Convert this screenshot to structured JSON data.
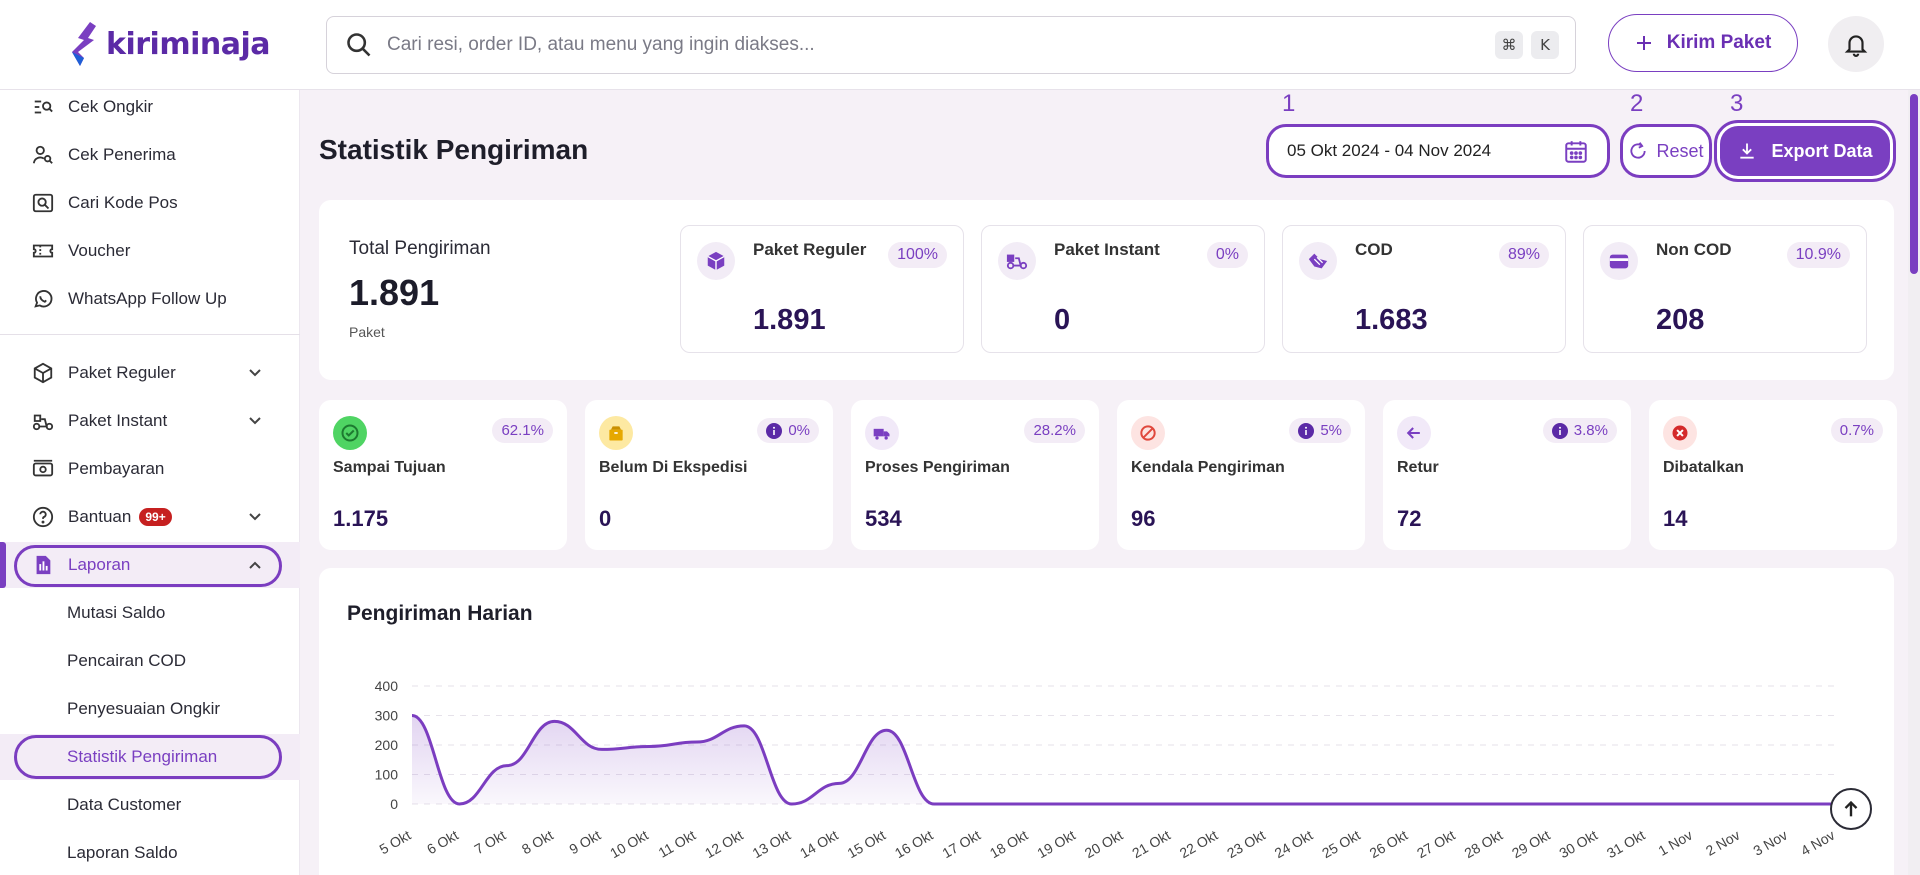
{
  "header": {
    "logo_text": "kiriminaja",
    "search_placeholder": "Cari resi, order ID, atau menu yang ingin diakses...",
    "shortcut_keys": [
      "⌘",
      "K"
    ],
    "kirim_label": "Kirim Paket"
  },
  "sidebar": {
    "top_items": [
      {
        "label": "Cek Ongkir",
        "icon": "list-search-icon"
      },
      {
        "label": "Cek Penerima",
        "icon": "user-search-icon"
      },
      {
        "label": "Cari Kode Pos",
        "icon": "map-search-icon"
      },
      {
        "label": "Voucher",
        "icon": "ticket-icon"
      },
      {
        "label": "WhatsApp Follow Up",
        "icon": "whatsapp-icon"
      }
    ],
    "menu_items": [
      {
        "label": "Paket Reguler",
        "icon": "package-icon"
      },
      {
        "label": "Paket Instant",
        "icon": "scooter-icon"
      },
      {
        "label": "Pembayaran",
        "icon": "cash-icon"
      },
      {
        "label": "Bantuan",
        "icon": "help-icon",
        "badge": "99+"
      },
      {
        "label": "Laporan",
        "icon": "report-icon"
      }
    ],
    "sub_items": [
      "Mutasi Saldo",
      "Pencairan COD",
      "Penyesuaian Ongkir",
      "Statistik Pengiriman",
      "Data Customer",
      "Laporan Saldo"
    ]
  },
  "main": {
    "title": "Statistik Pengiriman",
    "annotations": [
      "1",
      "2",
      "3"
    ],
    "date_range": "05 Okt 2024 - 04 Nov 2024",
    "reset_label": "Reset",
    "export_label": "Export Data",
    "total": {
      "label": "Total Pengiriman",
      "value": "1.891",
      "unit": "Paket"
    },
    "summary_cards": [
      {
        "label": "Paket Reguler",
        "pct": "100%",
        "value": "1.891"
      },
      {
        "label": "Paket Instant",
        "pct": "0%",
        "value": "0"
      },
      {
        "label": "COD",
        "pct": "89%",
        "value": "1.683"
      },
      {
        "label": "Non COD",
        "pct": "10.9%",
        "value": "208"
      }
    ],
    "status_cards": [
      {
        "label": "Sampai Tujuan",
        "pct": "62.1%",
        "value": "1.175",
        "info": false,
        "color": "#2fb34a",
        "bg": "#dff5e2"
      },
      {
        "label": "Belum Di Ekspedisi",
        "pct": "0%",
        "value": "0",
        "info": true,
        "color": "#e6a800",
        "bg": "#fdf1c8"
      },
      {
        "label": "Proses Pengiriman",
        "pct": "28.2%",
        "value": "534",
        "info": false,
        "color": "#7a3fc1",
        "bg": "#f1e9f8"
      },
      {
        "label": "Kendala Pengiriman",
        "pct": "5%",
        "value": "96",
        "info": true,
        "color": "#e0483d",
        "bg": "#fde4e2"
      },
      {
        "label": "Retur",
        "pct": "3.8%",
        "value": "72",
        "info": true,
        "color": "#7a3fc1",
        "bg": "#f1e9f8"
      },
      {
        "label": "Dibatalkan",
        "pct": "0.7%",
        "value": "14",
        "info": false,
        "color": "#d42a2a",
        "bg": "#fde4e2"
      }
    ]
  },
  "chart_data": {
    "type": "area",
    "title": "Pengiriman Harian",
    "categories": [
      "5 Okt",
      "6 Okt",
      "7 Okt",
      "8 Okt",
      "9 Okt",
      "10 Okt",
      "11 Okt",
      "12 Okt",
      "13 Okt",
      "14 Okt",
      "15 Okt",
      "16 Okt",
      "17 Okt",
      "18 Okt",
      "19 Okt",
      "20 Okt",
      "21 Okt",
      "22 Okt",
      "23 Okt",
      "24 Okt",
      "25 Okt",
      "26 Okt",
      "27 Okt",
      "28 Okt",
      "29 Okt",
      "30 Okt",
      "31 Okt",
      "1 Nov",
      "2 Nov",
      "3 Nov",
      "4 Nov"
    ],
    "values": [
      300,
      0,
      130,
      280,
      185,
      195,
      210,
      265,
      0,
      70,
      250,
      0,
      0,
      0,
      0,
      0,
      0,
      0,
      0,
      0,
      0,
      0,
      0,
      0,
      0,
      0,
      0,
      0,
      0,
      0,
      0
    ],
    "yticks": [
      0,
      100,
      200,
      300,
      400
    ],
    "ylim": [
      0,
      400
    ],
    "color": "#7b3dc0"
  }
}
